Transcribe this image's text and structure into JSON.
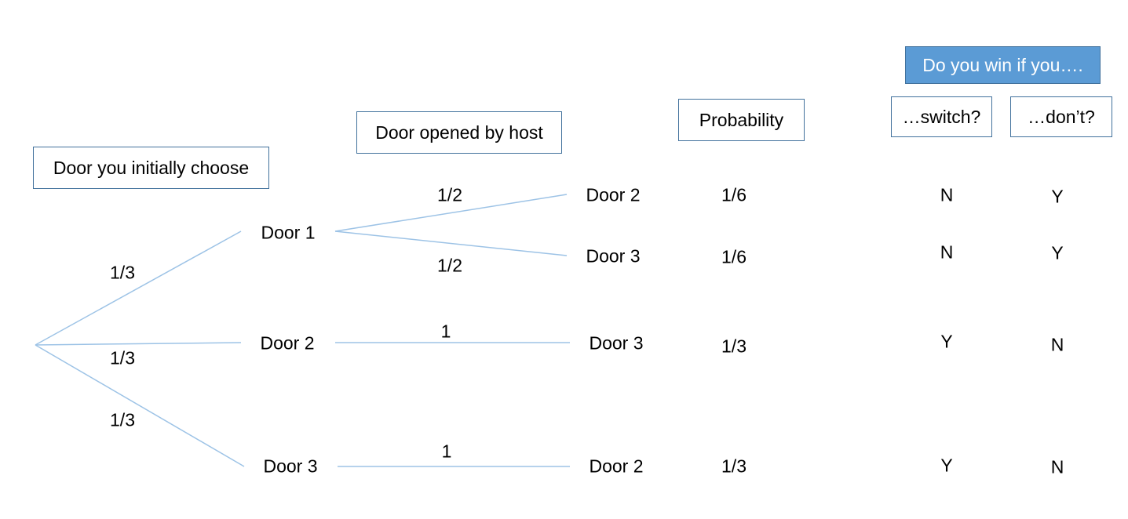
{
  "headers": {
    "initial_choice": "Door you initially choose",
    "host_opened": "Door opened by host",
    "probability": "Probability",
    "win_question": "Do you win if you….",
    "switch": "…switch?",
    "dont": "…don’t?"
  },
  "level1": [
    {
      "label": "Door 1",
      "prob": "1/3"
    },
    {
      "label": "Door 2",
      "prob": "1/3"
    },
    {
      "label": "Door 3",
      "prob": "1/3"
    }
  ],
  "level2": [
    {
      "label": "Door 2",
      "prob": "1/2",
      "probability": "1/6",
      "switch": "N",
      "dont": "Y"
    },
    {
      "label": "Door 3",
      "prob": "1/2",
      "probability": "1/6",
      "switch": "N",
      "dont": "Y"
    },
    {
      "label": "Door 3",
      "prob": "1",
      "probability": "1/3",
      "switch": "Y",
      "dont": "N"
    },
    {
      "label": "Door 2",
      "prob": "1",
      "probability": "1/3",
      "switch": "Y",
      "dont": "N"
    }
  ],
  "colors": {
    "line": "#9dc3e6",
    "box_border": "#41719c",
    "box_fill": "#5b9bd5"
  }
}
